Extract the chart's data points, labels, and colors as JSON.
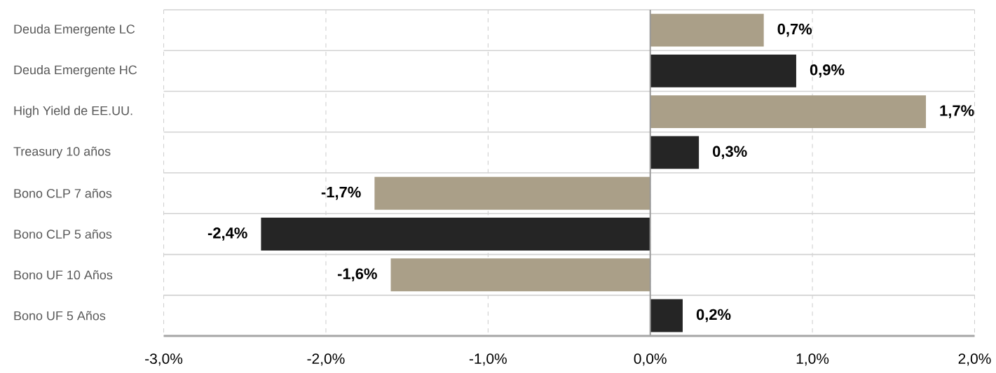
{
  "chart_data": {
    "type": "bar",
    "orientation": "horizontal",
    "categories": [
      "Deuda Emergente LC",
      "Deuda Emergente HC",
      "High Yield de EE.UU.",
      "Treasury 10 años",
      "Bono CLP 7 años",
      "Bono CLP 5 años",
      "Bono UF 10 Años",
      "Bono UF 5 Años"
    ],
    "values": [
      0.7,
      0.9,
      1.7,
      0.3,
      -1.7,
      -2.4,
      -1.6,
      0.2
    ],
    "colors": [
      "#aa9f88",
      "#252525",
      "#aa9f88",
      "#252525",
      "#aa9f88",
      "#252525",
      "#aa9f88",
      "#252525"
    ],
    "value_labels": [
      "0,7%",
      "0,9%",
      "1,7%",
      "0,3%",
      "-1,7%",
      "-2,4%",
      "-1,6%",
      "0,2%"
    ],
    "xlim": [
      -3,
      2
    ],
    "xticks": [
      {
        "value": -3,
        "label": "-3,0%"
      },
      {
        "value": -2,
        "label": "-2,0%"
      },
      {
        "value": -1,
        "label": "-1,0%"
      },
      {
        "value": 0,
        "label": "0,0%"
      },
      {
        "value": 1,
        "label": "1,0%"
      },
      {
        "value": 2,
        "label": "2,0%"
      }
    ],
    "grid": true
  }
}
